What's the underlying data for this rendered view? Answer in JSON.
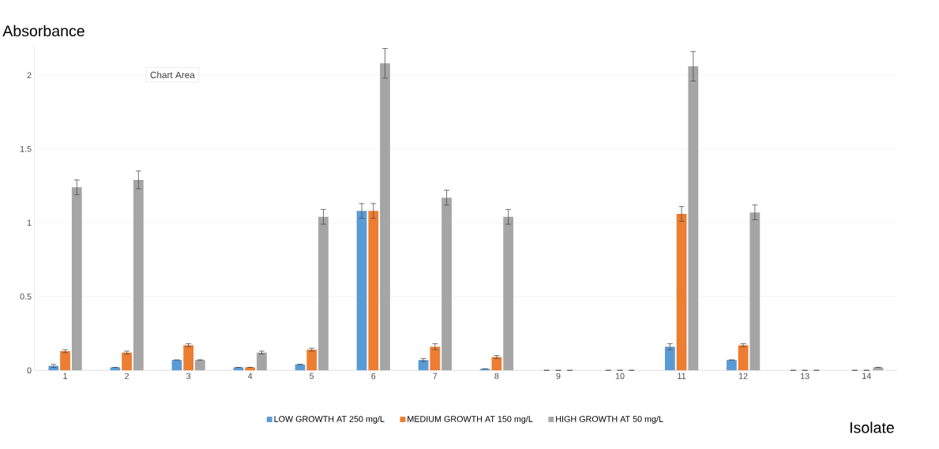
{
  "chart_data": {
    "type": "bar",
    "xlabel": "Isolate",
    "ylabel": "Absorbance",
    "categories": [
      "1",
      "2",
      "3",
      "4",
      "5",
      "6",
      "7",
      "8",
      "9",
      "10",
      "11",
      "12",
      "13",
      "14"
    ],
    "series": [
      {
        "name": "LOW GROWTH AT 250 mg/L",
        "color": "#5b9bd5",
        "values": [
          0.03,
          0.02,
          0.07,
          0.02,
          0.04,
          1.08,
          0.07,
          0.01,
          0,
          0,
          0.16,
          0.07,
          0,
          0
        ],
        "errors": [
          0.01,
          null,
          null,
          null,
          null,
          0.05,
          0.01,
          null,
          null,
          null,
          0.02,
          null,
          null,
          null
        ]
      },
      {
        "name": "MEDIUM GROWTH AT 150 mg/L",
        "color": "#ed7d31",
        "values": [
          0.13,
          0.12,
          0.17,
          0.02,
          0.14,
          1.08,
          0.16,
          0.09,
          0,
          0,
          1.06,
          0.17,
          0,
          0
        ],
        "errors": [
          0.01,
          0.01,
          0.01,
          null,
          0.01,
          0.05,
          0.02,
          0.01,
          null,
          null,
          0.05,
          0.01,
          null,
          null
        ]
      },
      {
        "name": "HIGH GROWTH AT 50 mg/L",
        "color": "#a5a5a5",
        "values": [
          1.24,
          1.29,
          0.07,
          0.12,
          1.04,
          2.08,
          1.17,
          1.04,
          0,
          0,
          2.06,
          1.07,
          0,
          0.02
        ],
        "errors": [
          0.05,
          0.06,
          null,
          0.01,
          0.05,
          0.1,
          0.05,
          0.05,
          null,
          null,
          0.1,
          0.05,
          null,
          null
        ]
      }
    ],
    "ylim": [
      0,
      2.2
    ],
    "yticks": [
      0,
      0.5,
      1,
      1.5,
      2
    ],
    "grid": "y",
    "legend": "bottom",
    "annotations": [
      "Chart Area"
    ]
  }
}
